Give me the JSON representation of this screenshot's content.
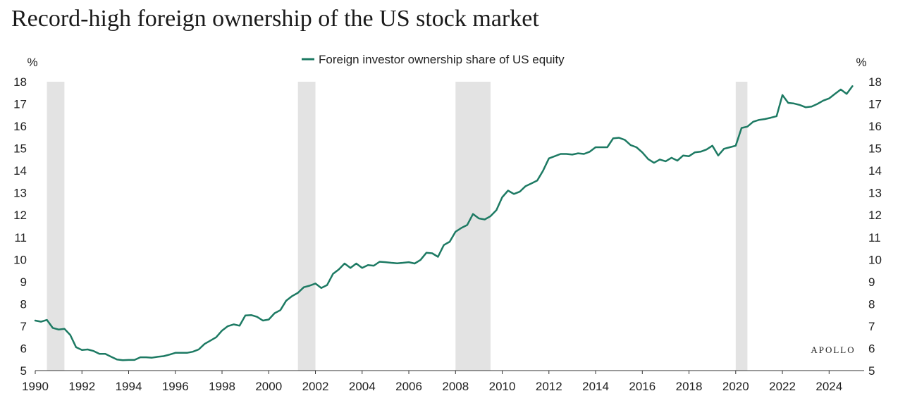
{
  "title": "Record-high foreign ownership of the US stock market",
  "brand": "APOLLO",
  "chart_data": {
    "type": "line",
    "title": "Record-high foreign ownership of the US stock market",
    "ylabel_left": "%",
    "ylabel_right": "%",
    "xlim": [
      1990,
      2025.5
    ],
    "ylim": [
      5,
      18
    ],
    "xticks": [
      1990,
      1992,
      1994,
      1996,
      1998,
      2000,
      2002,
      2004,
      2006,
      2008,
      2010,
      2012,
      2014,
      2016,
      2018,
      2020,
      2022,
      2024
    ],
    "yticks": [
      5,
      6,
      7,
      8,
      9,
      10,
      11,
      12,
      13,
      14,
      15,
      16,
      17,
      18
    ],
    "legend_position": "top-center",
    "grid": false,
    "recessions": [
      {
        "start": 1990.5,
        "end": 1991.25
      },
      {
        "start": 2001.25,
        "end": 2002.0
      },
      {
        "start": 2008.0,
        "end": 2009.5
      },
      {
        "start": 2020.0,
        "end": 2020.5
      }
    ],
    "series": [
      {
        "name": "Foreign investor ownership share of US equity",
        "color": "#1d7a63",
        "x": [
          1990.0,
          1990.25,
          1990.5,
          1990.75,
          1991.0,
          1991.25,
          1991.5,
          1991.75,
          1992.0,
          1992.25,
          1992.5,
          1992.75,
          1993.0,
          1993.25,
          1993.5,
          1993.75,
          1994.0,
          1994.25,
          1994.5,
          1994.75,
          1995.0,
          1995.25,
          1995.5,
          1995.75,
          1996.0,
          1996.25,
          1996.5,
          1996.75,
          1997.0,
          1997.25,
          1997.5,
          1997.75,
          1998.0,
          1998.25,
          1998.5,
          1998.75,
          1999.0,
          1999.25,
          1999.5,
          1999.75,
          2000.0,
          2000.25,
          2000.5,
          2000.75,
          2001.0,
          2001.25,
          2001.5,
          2001.75,
          2002.0,
          2002.25,
          2002.5,
          2002.75,
          2003.0,
          2003.25,
          2003.5,
          2003.75,
          2004.0,
          2004.25,
          2004.5,
          2004.75,
          2005.0,
          2005.25,
          2005.5,
          2005.75,
          2006.0,
          2006.25,
          2006.5,
          2006.75,
          2007.0,
          2007.25,
          2007.5,
          2007.75,
          2008.0,
          2008.25,
          2008.5,
          2008.75,
          2009.0,
          2009.25,
          2009.5,
          2009.75,
          2010.0,
          2010.25,
          2010.5,
          2010.75,
          2011.0,
          2011.25,
          2011.5,
          2011.75,
          2012.0,
          2012.25,
          2012.5,
          2012.75,
          2013.0,
          2013.25,
          2013.5,
          2013.75,
          2014.0,
          2014.25,
          2014.5,
          2014.75,
          2015.0,
          2015.25,
          2015.5,
          2015.75,
          2016.0,
          2016.25,
          2016.5,
          2016.75,
          2017.0,
          2017.25,
          2017.5,
          2017.75,
          2018.0,
          2018.25,
          2018.5,
          2018.75,
          2019.0,
          2019.25,
          2019.5,
          2019.75,
          2020.0,
          2020.25,
          2020.5,
          2020.75,
          2021.0,
          2021.25,
          2021.5,
          2021.75,
          2022.0,
          2022.25,
          2022.5,
          2022.75,
          2023.0,
          2023.25,
          2023.5,
          2023.75,
          2024.0,
          2024.25,
          2024.5,
          2024.75,
          2025.0
        ],
        "values": [
          7.25,
          7.2,
          7.28,
          6.92,
          6.85,
          6.88,
          6.6,
          6.05,
          5.93,
          5.95,
          5.88,
          5.75,
          5.75,
          5.62,
          5.5,
          5.47,
          5.48,
          5.48,
          5.6,
          5.6,
          5.58,
          5.62,
          5.65,
          5.72,
          5.8,
          5.8,
          5.8,
          5.85,
          5.95,
          6.2,
          6.35,
          6.5,
          6.8,
          7.0,
          7.08,
          7.02,
          7.48,
          7.5,
          7.42,
          7.25,
          7.3,
          7.58,
          7.72,
          8.15,
          8.35,
          8.5,
          8.75,
          8.82,
          8.92,
          8.72,
          8.85,
          9.35,
          9.55,
          9.82,
          9.62,
          9.82,
          9.62,
          9.75,
          9.72,
          9.9,
          9.88,
          9.85,
          9.83,
          9.85,
          9.88,
          9.82,
          9.98,
          10.3,
          10.28,
          10.12,
          10.65,
          10.8,
          11.25,
          11.42,
          11.55,
          12.05,
          11.85,
          11.8,
          11.95,
          12.22,
          12.8,
          13.1,
          12.95,
          13.05,
          13.3,
          13.42,
          13.55,
          14.0,
          14.55,
          14.65,
          14.75,
          14.75,
          14.72,
          14.78,
          14.75,
          14.85,
          15.05,
          15.05,
          15.05,
          15.45,
          15.48,
          15.38,
          15.15,
          15.05,
          14.82,
          14.52,
          14.35,
          14.5,
          14.42,
          14.58,
          14.45,
          14.68,
          14.65,
          14.82,
          14.85,
          14.95,
          15.12,
          14.68,
          14.98,
          15.05,
          15.12,
          15.92,
          15.98,
          16.2,
          16.28,
          16.32,
          16.38,
          16.45,
          17.4,
          17.05,
          17.02,
          16.95,
          16.85,
          16.88,
          17.0,
          17.15,
          17.25,
          17.45,
          17.65,
          17.45,
          17.8
        ]
      }
    ]
  }
}
